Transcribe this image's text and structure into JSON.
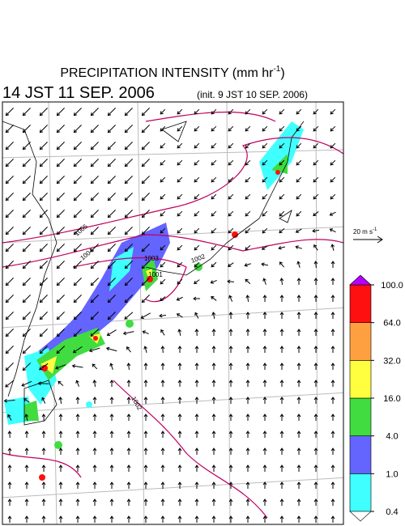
{
  "title": {
    "main": "PRECIPITATION INTENSITY (mm hr",
    "exponent": "-1",
    "close": ")"
  },
  "valid_time": "14 JST 11 SEP. 2006",
  "init_time": "(init. 9 JST 10 SEP. 2006)",
  "wind_scale": {
    "main": "20 m s",
    "exponent": "-1"
  },
  "colorbar": {
    "ticks": [
      {
        "value": 0.4,
        "label": "0.4"
      },
      {
        "value": 1,
        "label": "1.0"
      },
      {
        "value": 4,
        "label": "4.0"
      },
      {
        "value": 16,
        "label": "16.0"
      },
      {
        "value": 32,
        "label": "32.0"
      },
      {
        "value": 64,
        "label": "64.0"
      },
      {
        "value": 100,
        "label": "100.0"
      }
    ],
    "colors": [
      "#40ffff",
      "#6464ff",
      "#40dc40",
      "#ffff40",
      "#ffa040",
      "#ff1010"
    ],
    "over_color": "#b400ff",
    "under_color": "#ffffff"
  },
  "isobar_labels": [
    1005,
    1004,
    1003,
    1001,
    1002,
    1002
  ]
}
